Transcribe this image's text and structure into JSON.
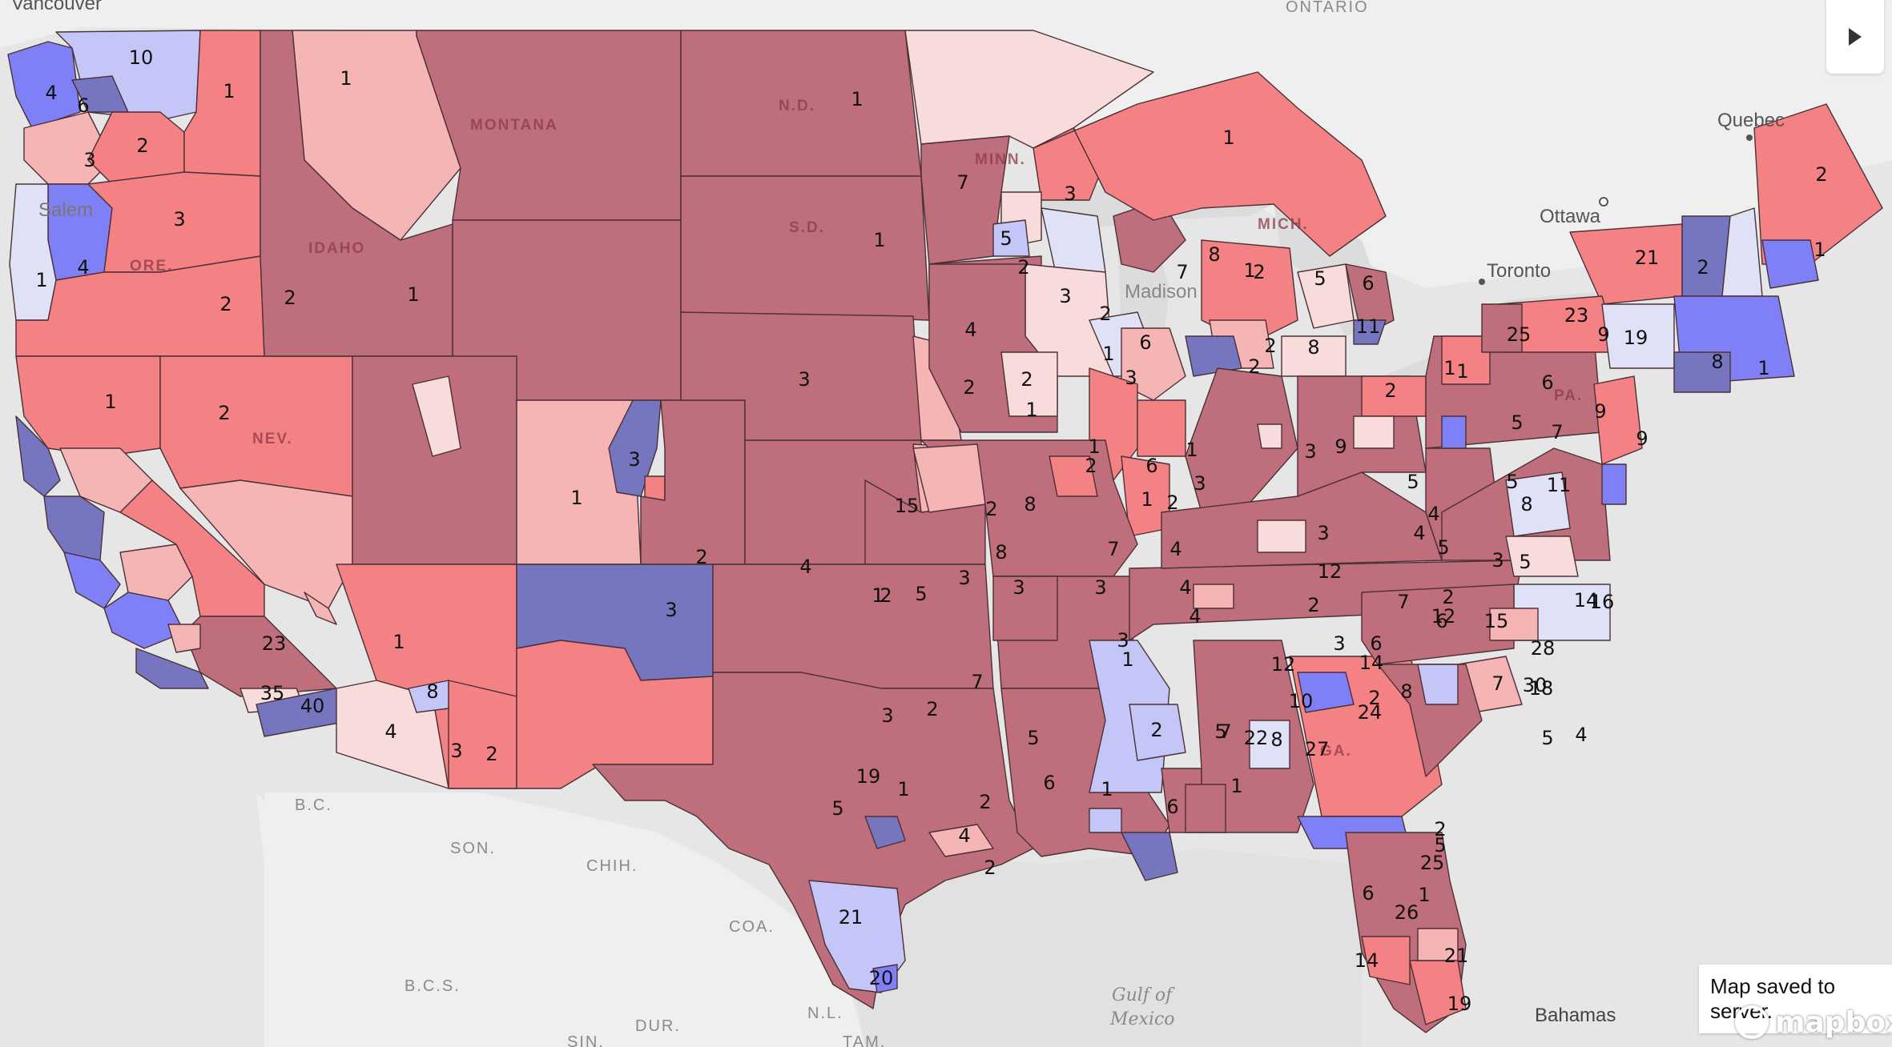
{
  "colors": {
    "ocean": "#e6e6e6",
    "land": "#efefef",
    "lakes": "#dcdcdc",
    "solid_r": "#bf6f7b",
    "likely_r": "#f48284",
    "lean_r": "#f6b5b5",
    "tilt_r": "#f8dcdc",
    "tilt_d": "#dfe2f6",
    "lean_d": "#c3c6f6",
    "likely_d": "#7f80f5",
    "solid_d": "#7576bf"
  },
  "base_labels": {
    "cities": [
      "Vancouver",
      "Salem",
      "Madison",
      "Toronto",
      "Ottawa",
      "Quebec"
    ],
    "regions": [
      "ONTARIO",
      "B.C.",
      "SON.",
      "CHIH.",
      "COA.",
      "B.C.S.",
      "DUR.",
      "N.L.",
      "SIN.",
      "TAM.",
      "Bahamas"
    ],
    "water": [
      "Gulf of",
      "Mexico"
    ],
    "states": [
      "MONTANA",
      "N.D.",
      "S.D.",
      "MINN.",
      "MICH.",
      "IDAHO",
      "ORE.",
      "NEV.",
      "PA.",
      "GA."
    ]
  },
  "district_labels": [
    "10",
    "4",
    "6",
    "1",
    "3",
    "2",
    "3",
    "1",
    "4",
    "1",
    "2",
    "2",
    "1",
    "1",
    "2",
    "1",
    "1",
    "1",
    "2",
    "3",
    "4",
    "3",
    "2",
    "2",
    "1",
    "3",
    "1",
    "2",
    "3",
    "2",
    "1",
    "3",
    "23",
    "40",
    "35",
    "8",
    "3",
    "4",
    "2",
    "1",
    "3",
    "2",
    "3",
    "1",
    "8",
    "7",
    "1",
    "5",
    "1",
    "2",
    "5",
    "1",
    "3",
    "4",
    "2",
    "3",
    "1",
    "6",
    "7",
    "8",
    "2",
    "5",
    "6",
    "11",
    "8",
    "2",
    "1",
    "25",
    "23",
    "21",
    "19",
    "9",
    "8",
    "1",
    "2",
    "1",
    "2",
    "9",
    "6",
    "9",
    "7",
    "5",
    "5",
    "2",
    "11",
    "1",
    "8",
    "3",
    "14",
    "4",
    "5",
    "3",
    "3",
    "9",
    "4",
    "6",
    "2",
    "1",
    "7",
    "3",
    "4",
    "2",
    "8",
    "3",
    "15",
    "2",
    "7",
    "5",
    "6",
    "1",
    "3",
    "1",
    "4",
    "2",
    "6",
    "5",
    "8",
    "12",
    "10",
    "12",
    "14",
    "4",
    "5",
    "6",
    "7",
    "2",
    "3",
    "6",
    "2",
    "5",
    "4",
    "15",
    "16",
    "28",
    "5",
    "18",
    "30",
    "27",
    "24",
    "25",
    "2",
    "8",
    "7",
    "1",
    "2",
    "4",
    "5",
    "2",
    "21",
    "20",
    "19",
    "12",
    "6",
    "5",
    "1",
    "2",
    "19",
    "14",
    "21",
    "26",
    "22",
    "7",
    "1"
  ],
  "toolbar": {
    "toggle_icon": "play-triangle-icon"
  },
  "status": {
    "message": "Map saved to server."
  },
  "attribution": {
    "logo_text": "mapbox",
    "logo_icon": "mapbox-icon"
  }
}
